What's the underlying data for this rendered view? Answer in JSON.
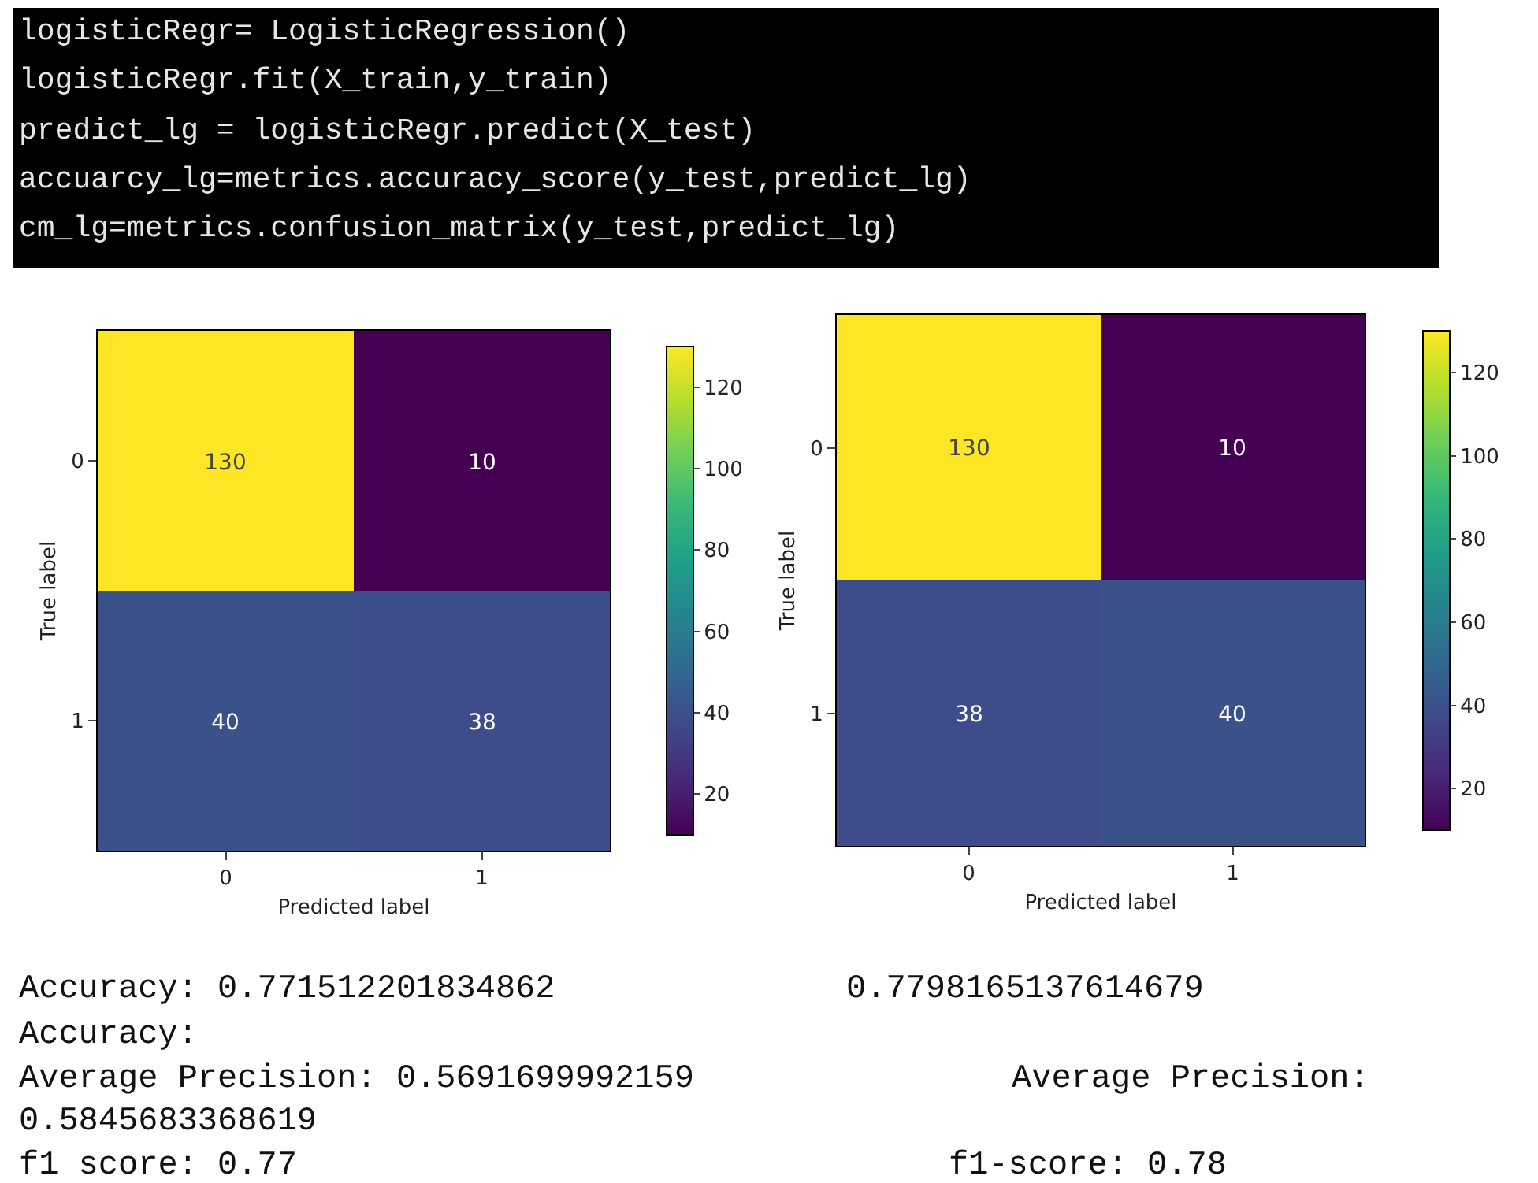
{
  "chart_data": [
    {
      "type": "heatmap",
      "xlabel": "Predicted label",
      "ylabel": "True label",
      "categories": [
        "0",
        "1"
      ],
      "y_categories": [
        "0",
        "1"
      ],
      "cells": [
        [
          130,
          10
        ],
        [
          40,
          38
        ]
      ],
      "clim": [
        10,
        130
      ],
      "cticks": [
        20,
        40,
        60,
        80,
        100,
        120
      ],
      "data_labels": true,
      "annotations": [
        "logisticRegr= LogisticRegression()",
        "logisticRegr.fit(X_train,y_train)",
        "predict_lg = logisticRegr.predict(X_test)",
        "accuarcy_lg=metrics.accuracy_score(y_test,predict_lg)",
        "cm_lg=metrics.confusion_matrix(y_test,predict_lg)",
        "Accuracy: 0.771512201834862",
        "Average Precision: 0.5691699992159",
        "f1 score: 0.77"
      ]
    },
    {
      "type": "heatmap",
      "xlabel": "Predicted label",
      "ylabel": "True label",
      "categories": [
        "0",
        "1"
      ],
      "y_categories": [
        "0",
        "1"
      ],
      "cells": [
        [
          130,
          10
        ],
        [
          38,
          40
        ]
      ],
      "clim": [
        10,
        130
      ],
      "cticks": [
        20,
        40,
        60,
        80,
        100,
        120
      ],
      "data_labels": true,
      "annotations": [
        "0.7798165137614679",
        "Accuracy:",
        "Average Precision:",
        "0.5845683368619",
        "f1-score: 0.78"
      ]
    }
  ]
}
